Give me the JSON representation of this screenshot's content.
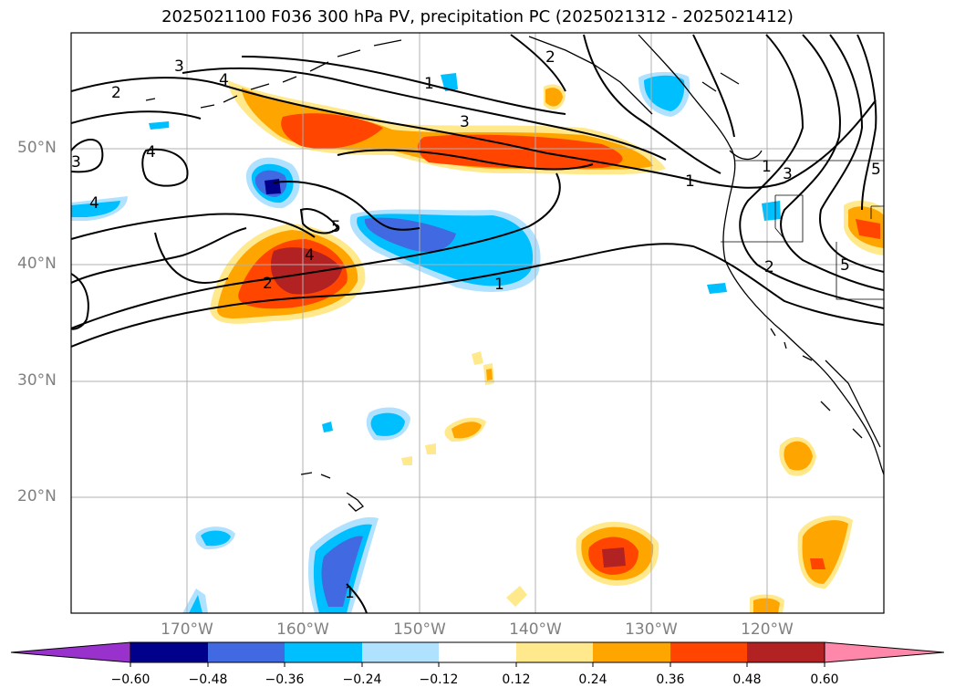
{
  "title": "2025021100 F036 300 hPa PV, precipitation PC (2025021312 - 2025021412)",
  "map": {
    "lat_labels": [
      "50°N",
      "40°N",
      "30°N",
      "20°N"
    ],
    "lon_labels": [
      "170°W",
      "160°W",
      "150°W",
      "140°W",
      "130°W",
      "120°W"
    ],
    "pv_contour_labels": [
      "1",
      "2",
      "3",
      "4",
      "5"
    ]
  },
  "colorbar": {
    "ticks": [
      "−0.60",
      "−0.48",
      "−0.36",
      "−0.24",
      "−0.12",
      "0.12",
      "0.24",
      "0.36",
      "0.48",
      "0.60"
    ],
    "colors": [
      "#9932cc",
      "#00008b",
      "#4169e1",
      "#00bfff",
      "#b0e2ff",
      "#ffffff",
      "#ffe98c",
      "#ffa500",
      "#ff4500",
      "#b22222",
      "#ff88aa"
    ]
  }
}
